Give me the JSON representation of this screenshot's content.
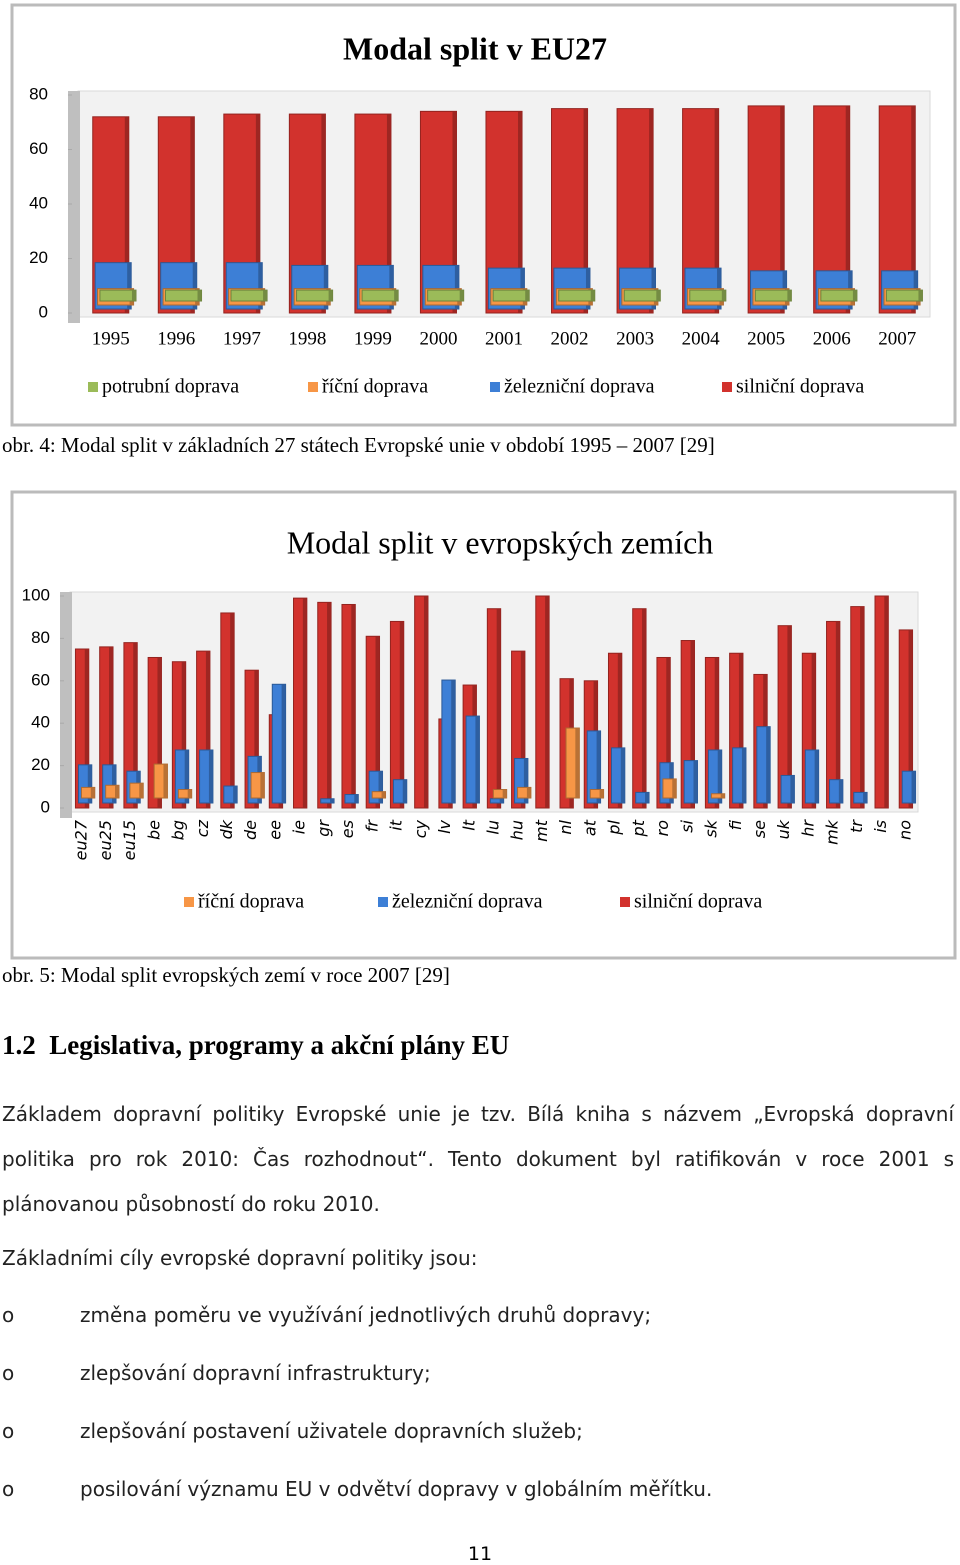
{
  "chart_data": [
    {
      "type": "bar3d",
      "title": "Modal split v EU27",
      "categories": [
        "1995",
        "1996",
        "1997",
        "1998",
        "1999",
        "2000",
        "2001",
        "2002",
        "2003",
        "2004",
        "2005",
        "2006",
        "2007"
      ],
      "series": [
        {
          "name": "potrubní doprava",
          "color": "#9bbb59",
          "values": [
            4,
            4,
            4,
            4,
            4,
            4,
            4,
            4,
            4,
            4,
            4,
            4,
            4
          ]
        },
        {
          "name": "říční doprava",
          "color": "#f79646",
          "values": [
            6,
            6,
            6,
            6,
            6,
            6,
            6,
            6,
            6,
            6,
            6,
            6,
            6
          ]
        },
        {
          "name": "železniční doprava",
          "color": "#3d7fd6",
          "values": [
            17,
            17,
            17,
            16,
            16,
            16,
            15,
            15,
            15,
            15,
            14,
            14,
            14
          ]
        },
        {
          "name": "silniční doprava",
          "color": "#d2322d",
          "values": [
            72,
            72,
            73,
            73,
            73,
            74,
            74,
            75,
            75,
            75,
            76,
            76,
            76
          ]
        }
      ],
      "ylim": [
        0,
        80
      ],
      "yticks": [
        0,
        20,
        40,
        60,
        80
      ]
    },
    {
      "type": "bar3d",
      "title": "Modal split v evropských zemích",
      "categories": [
        "eu27",
        "eu25",
        "eu15",
        "be",
        "bg",
        "cz",
        "dk",
        "de",
        "ee",
        "ie",
        "gr",
        "es",
        "fr",
        "it",
        "cy",
        "lv",
        "lt",
        "lu",
        "hu",
        "mt",
        "nl",
        "at",
        "pl",
        "pt",
        "ro",
        "si",
        "sk",
        "fi",
        "se",
        "uk",
        "hr",
        "mk",
        "tr",
        "is",
        "no"
      ],
      "series": [
        {
          "name": "říční doprava",
          "color": "#f79646",
          "values": [
            5,
            6,
            7,
            16,
            4,
            0,
            0,
            12,
            0,
            0,
            0,
            0,
            3,
            0,
            0,
            0,
            0,
            4,
            5,
            0,
            33,
            4,
            0,
            0,
            9,
            0,
            2,
            0,
            0,
            0,
            0,
            0,
            0,
            0,
            0
          ]
        },
        {
          "name": "železniční doprava",
          "color": "#3d7fd6",
          "values": [
            18,
            18,
            15,
            0,
            25,
            25,
            8,
            22,
            56,
            0,
            2,
            4,
            15,
            11,
            0,
            58,
            41,
            2,
            21,
            0,
            0,
            34,
            26,
            5,
            19,
            20,
            25,
            26,
            36,
            13,
            25,
            11,
            5,
            0,
            15
          ]
        },
        {
          "name": "silniční doprava",
          "color": "#d2322d",
          "values": [
            75,
            76,
            78,
            71,
            69,
            74,
            92,
            65,
            44,
            99,
            97,
            96,
            81,
            88,
            100,
            42,
            58,
            94,
            74,
            100,
            61,
            60,
            73,
            94,
            71,
            79,
            71,
            73,
            63,
            86,
            73,
            88,
            95,
            100,
            84
          ]
        }
      ],
      "ylim": [
        0,
        100
      ],
      "yticks": [
        0,
        20,
        40,
        60,
        80,
        100
      ]
    }
  ],
  "captions": [
    "obr. 4: Modal split v základních 27 státech Evropské unie v období 1995 – 2007 [29]",
    "obr. 5: Modal split evropských zemí v roce 2007 [29]"
  ],
  "heading": {
    "number": "1.2",
    "text": "Legislativa, programy a akční plány EU"
  },
  "paragraphs": [
    "Základem dopravní politiky Evropské unie je tzv. Bílá kniha s názvem „Evropská dopravní politika pro rok 2010: Čas rozhodnout“. Tento dokument byl ratifikován v roce 2001 s plánovanou působností do roku 2010.",
    "Základními cíly evropské dopravní politiky jsou:"
  ],
  "list": {
    "marker": "o",
    "items": [
      "změna poměru ve využívání jednotlivých druhů dopravy;",
      "zlepšování dopravní infrastruktury;",
      "zlepšování postavení uživatele dopravních služeb;",
      "posilování významu EU v odvětví dopravy v globálním měřítku."
    ]
  },
  "page_number": "11"
}
